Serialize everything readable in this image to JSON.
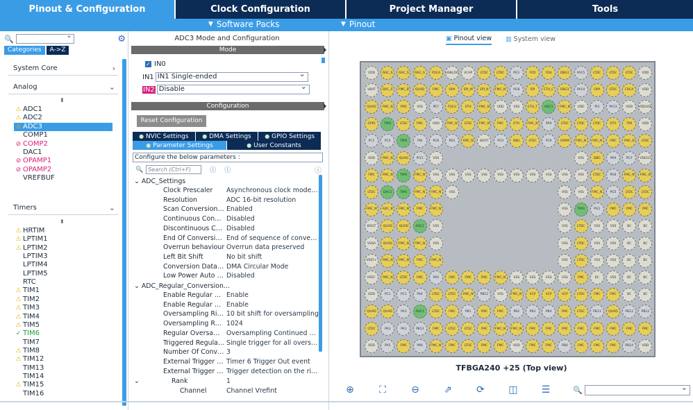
{
  "top_tabs": [
    {
      "label": "Pinout & Configuration",
      "active": true
    },
    {
      "label": "Clock Configuration",
      "active": false
    },
    {
      "label": "Project Manager",
      "active": false
    },
    {
      "label": "Tools",
      "active": false
    }
  ],
  "sub_menu": {
    "software_packs": "Software Packs",
    "pinout": "Pinout"
  },
  "left_panel": {
    "category_tabs": [
      "Categories",
      "A->Z"
    ],
    "groups": {
      "system_core": "System Core",
      "analog": "Analog",
      "timers": "Timers"
    },
    "analog_items": [
      {
        "label": "ADC1",
        "status": "warning"
      },
      {
        "label": "ADC2",
        "status": "warning"
      },
      {
        "label": "ADC3",
        "status": "warning",
        "selected": true
      },
      {
        "label": "COMP1",
        "status": "none"
      },
      {
        "label": "COMP2",
        "status": "blocked"
      },
      {
        "label": "DAC1",
        "status": "none"
      },
      {
        "label": "OPAMP1",
        "status": "blocked"
      },
      {
        "label": "OPAMP2",
        "status": "blocked"
      },
      {
        "label": "VREFBUF",
        "status": "none"
      }
    ],
    "timer_items": [
      {
        "label": "HRTIM",
        "status": "warning"
      },
      {
        "label": "LPTIM1",
        "status": "warning"
      },
      {
        "label": "LPTIM2",
        "status": "warning"
      },
      {
        "label": "LPTIM3",
        "status": "none"
      },
      {
        "label": "LPTIM4",
        "status": "none"
      },
      {
        "label": "LPTIM5",
        "status": "none"
      },
      {
        "label": "RTC",
        "status": "none"
      },
      {
        "label": "TIM1",
        "status": "warning"
      },
      {
        "label": "TIM2",
        "status": "warning"
      },
      {
        "label": "TIM3",
        "status": "warning"
      },
      {
        "label": "TIM4",
        "status": "warning"
      },
      {
        "label": "TIM5",
        "status": "warning"
      },
      {
        "label": "TIM6",
        "status": "ok"
      },
      {
        "label": "TIM7",
        "status": "none"
      },
      {
        "label": "TIM8",
        "status": "warning"
      },
      {
        "label": "TIM12",
        "status": "warning"
      },
      {
        "label": "TIM13",
        "status": "none"
      },
      {
        "label": "TIM14",
        "status": "none"
      },
      {
        "label": "TIM15",
        "status": "warning"
      },
      {
        "label": "TIM16",
        "status": "none"
      }
    ]
  },
  "middle_panel": {
    "title": "ADC3 Mode and Configuration",
    "mode_header": "Mode",
    "in0_label": "IN0",
    "in1": {
      "label": "IN1",
      "value": "IN1 Single-ended"
    },
    "in2": {
      "label": "IN2",
      "value": "Disable"
    },
    "configuration_header": "Configuration",
    "reset_button": "Reset Configuration",
    "tabs_row1": [
      "NVIC Settings",
      "DMA Settings",
      "GPIO Settings"
    ],
    "tabs_row2": [
      "Parameter Settings",
      "User Constants"
    ],
    "configure_text": "Configure the below parameters :",
    "search_placeholder": "Search (Ctrl+F)",
    "sections": {
      "adc_settings": "ADC_Settings",
      "adc_regular": "ADC_Regular_Conversion..."
    },
    "adc_settings": [
      {
        "key": "Clock Prescaler",
        "value": "Asynchronous clock mode divi..."
      },
      {
        "key": "Resolution",
        "value": "ADC 16-bit resolution"
      },
      {
        "key": "Scan Conversion M...",
        "value": "Enabled"
      },
      {
        "key": "Continuous Convers...",
        "value": "Disabled"
      },
      {
        "key": "Discontinuous Conv...",
        "value": "Disabled"
      },
      {
        "key": "End Of Conversion ...",
        "value": "End of sequence of conversion"
      },
      {
        "key": "Overrun behaviour",
        "value": "Overrun data preserved"
      },
      {
        "key": "Left Bit Shift",
        "value": "No bit shift"
      },
      {
        "key": "Conversion Data Ma...",
        "value": "DMA Circular Mode"
      },
      {
        "key": "Low Power Auto Wait",
        "value": "Disabled"
      }
    ],
    "adc_regular": [
      {
        "key": "Enable Regular Con...",
        "value": "Enable"
      },
      {
        "key": "Enable Regular Ove...",
        "value": "Enable"
      },
      {
        "key": "Oversampling Right ...",
        "value": "10 bit shift for oversampling"
      },
      {
        "key": "Oversampling Ratio",
        "value": "1024"
      },
      {
        "key": "Regular Oversampli...",
        "value": "Oversampling Continued Mode"
      },
      {
        "key": "Triggered Regular O...",
        "value": "Single trigger for all oversampl..."
      },
      {
        "key": "Number Of Conversi...",
        "value": "3"
      },
      {
        "key": "External Trigger Co...",
        "value": "Timer 6 Trigger Out event"
      },
      {
        "key": "External Trigger Co...",
        "value": "Trigger detection on the rising ..."
      }
    ],
    "rank": {
      "key": "Rank",
      "value": "1"
    },
    "channel": {
      "key": "Channel",
      "value": "Channel Vrefint"
    }
  },
  "right_panel": {
    "view_tabs": [
      "Pinout view",
      "System view"
    ],
    "chip_name": "TFBGA240 +25 (Top view)",
    "toolbar_icons": [
      "zoom-in-icon",
      "fit-screen-icon",
      "zoom-out-icon",
      "export-icon",
      "rotate-icon",
      "split-icon",
      "layout-icon"
    ],
    "pin_rows": [
      [
        "VDD",
        "DAC_S",
        "DAC_S",
        "DAC_S",
        "FDCA",
        "USBLDO",
        "VCAP",
        "LTDC",
        "LTDC",
        "PG1",
        "FD5",
        "FD4",
        "DBG1",
        "PA15",
        "LTDC",
        "LTDC",
        "LTDC",
        "VDD"
      ],
      [
        "VBAT",
        "DAC_S",
        "FMC_B",
        "QUAD",
        "FMC",
        "OPA",
        "SPI_M",
        "SPI_N",
        "FMC_N",
        "PG8",
        "SPI",
        "ETH_C",
        "DBG1",
        "PA14",
        "OPA",
        "LTDC",
        "FDCA",
        "VDD"
      ],
      [
        "QUAD",
        "FMC_N",
        "FMC",
        "VSS",
        "PE7",
        "FDCU",
        "ETH",
        "FMC_N",
        "VDD",
        "VSS",
        "ETH_T",
        "ADC1",
        "FMC_N",
        "VDD",
        "PI3",
        "PA13",
        "VDD",
        "VDDUSB"
      ],
      [
        "GPIO",
        "TIM1",
        "LTDC",
        "FMC",
        "VDD",
        "FMC_N",
        "LTDC",
        "FMC_N",
        "FMC",
        "ETH",
        "FMC_N",
        "PA9",
        "LTDC",
        "LTDC",
        "LTDC",
        "ETH",
        "TIM",
        "VDD"
      ],
      [
        "PC1",
        "PC2",
        "TIM1",
        "PI8",
        "PC8",
        "PD1",
        "FMC_N",
        "BOOT",
        "PC9",
        "DBG",
        "LTDC",
        "PC9",
        "OPAM",
        "FMC_N",
        "FMC_N",
        "FMC",
        "FMC_N",
        "LTDC"
      ],
      [
        "VDD",
        "FMC_N",
        "QUAD",
        "PI11",
        "VSS",
        "",
        "",
        "",
        "",
        "",
        "",
        "",
        "",
        "VSS",
        "DBG",
        "PA9",
        "PG7",
        "VDD33"
      ],
      [
        "FMC",
        "FMC_N",
        "TIM1",
        "FMC_N",
        "VSS",
        "VSS",
        "VSS",
        "VSS",
        "VSS",
        "VSS",
        "VSS",
        "VSS",
        "VSS",
        "VSS",
        "LTDC",
        "PG6",
        "FMC_N",
        "FMC_N"
      ],
      [
        "LTDC",
        "DAC1",
        "TIM1",
        "FMC_N",
        "FMC_N",
        "VSS",
        "",
        "",
        "",
        "",
        "",
        "",
        "VSS",
        "VSS",
        "FMC_N",
        "PG5",
        "LTDC",
        "LTDC"
      ],
      [
        "FMC_N",
        "ADC_B",
        "FMC_N",
        "FMC",
        "FMC_N",
        "",
        "",
        "",
        "",
        "",
        "",
        "",
        "VSS",
        "TIM3",
        "PG1",
        "FMC",
        "FMC",
        "FMC"
      ],
      [
        "BOOT",
        "QUAD",
        "QUAD",
        "ADC1",
        "VSS",
        "",
        "",
        "",
        "",
        "",
        "",
        "",
        "VSS",
        "LTDC",
        "VSS",
        "VSS",
        "BC",
        "BC"
      ],
      [
        "VSSA",
        "QUAD",
        "FMC_N",
        "FMC_N",
        "VSS",
        "",
        "",
        "",
        "",
        "",
        "",
        "",
        "VSS",
        "LTDC",
        "VSS",
        "VSS",
        "BC",
        "BC"
      ],
      [
        "VREF+",
        "FMC_N",
        "FMC_N",
        "FMC",
        "FMC_N",
        "",
        "",
        "",
        "",
        "",
        "",
        "",
        "VSS",
        "LTDC",
        "VSS",
        "VSS",
        "BC",
        "BC"
      ],
      [
        "VREF-",
        "FMC_N",
        "LTDC",
        "FMC",
        "PA0",
        "FMC",
        "FMC",
        "FMC",
        "FMC_N",
        "VSS",
        "VSS",
        "VSS",
        "VSS",
        "FMC",
        "BC",
        "VSS",
        "BC",
        "BC"
      ],
      [
        "VDD",
        "PC1",
        "PC1",
        "PA4",
        "LTDC",
        "LTDC",
        "FMC_N",
        "PB12",
        "VSS",
        "FMC_N",
        "VCP",
        "VCP",
        "VCP",
        "LTDC",
        "FMC",
        "FMC",
        "BC",
        "BC"
      ],
      [
        "QUAD",
        "QUAD",
        "PA3",
        "ADC1",
        "LTDC",
        "FMC",
        "PB1",
        "FMC",
        "FMC",
        "PB2",
        "PB3",
        "PB4",
        "FMC",
        "LTDC",
        "PB13",
        "QUAD",
        "PB12",
        "PB12"
      ],
      [
        "LTDC",
        "PA3",
        "PA1",
        "PB13",
        "FMC",
        "LTDC",
        "LTDC",
        "FMC",
        "FMC_N",
        "FMC_N",
        "FMC",
        "FMC",
        "FMC",
        "FMC",
        "FMC",
        "FMC",
        "FMC",
        "FMC"
      ],
      [
        "VDD",
        "PA5",
        "FMC",
        "PA6",
        "FMC_N",
        "FMC",
        "LTDC",
        "FMC",
        "FMC",
        "VDD",
        "FMC",
        "FMC",
        "PB0",
        "FMC",
        "FMC",
        "FMC",
        "PB14",
        "VDD"
      ]
    ]
  }
}
